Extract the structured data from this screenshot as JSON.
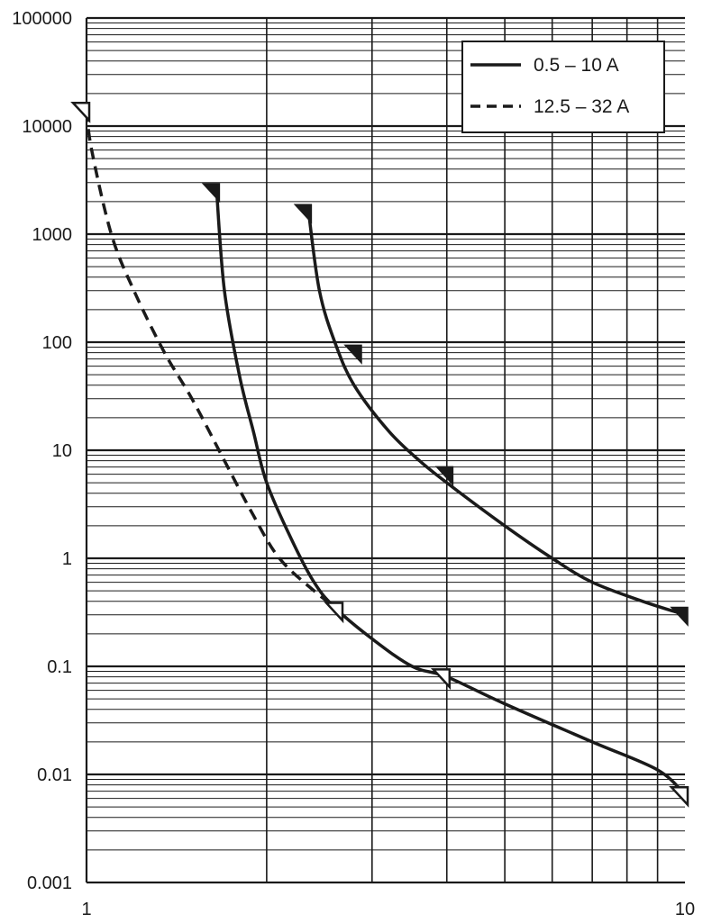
{
  "chart_data": {
    "type": "line",
    "title": "",
    "xlabel": "",
    "ylabel": "",
    "x_scale": "log",
    "y_scale": "log",
    "xlim": [
      1,
      10
    ],
    "ylim": [
      0.001,
      100000
    ],
    "grid": true,
    "legend_position": "top-right",
    "x_ticks": [
      "1",
      "10"
    ],
    "y_ticks": [
      "100000",
      "10000",
      "1000",
      "100",
      "10",
      "1",
      "0.1",
      "0.01",
      "0.001"
    ],
    "legend": [
      {
        "label": "0.5 – 10 A",
        "style": "solid"
      },
      {
        "label": "12.5 – 32 A",
        "style": "dashed"
      }
    ],
    "series": [
      {
        "style": "solid",
        "points": [
          [
            1.65,
            2500
          ],
          [
            1.7,
            300
          ],
          [
            1.8,
            50
          ],
          [
            1.9,
            15
          ],
          [
            2.0,
            5
          ],
          [
            2.2,
            1.5
          ],
          [
            2.4,
            0.6
          ],
          [
            2.6,
            0.35
          ],
          [
            3.0,
            0.18
          ],
          [
            3.5,
            0.1
          ],
          [
            4.0,
            0.08
          ],
          [
            5.0,
            0.045
          ],
          [
            7.0,
            0.02
          ],
          [
            9.0,
            0.011
          ],
          [
            10.0,
            0.0065
          ]
        ]
      },
      {
        "style": "solid",
        "points": [
          [
            2.35,
            1600
          ],
          [
            2.45,
            300
          ],
          [
            2.6,
            100
          ],
          [
            2.8,
            40
          ],
          [
            3.2,
            15
          ],
          [
            3.6,
            8
          ],
          [
            4.0,
            5
          ],
          [
            5.0,
            2
          ],
          [
            6.0,
            1
          ],
          [
            7.0,
            0.6
          ],
          [
            8.5,
            0.4
          ],
          [
            10.0,
            0.3
          ]
        ]
      },
      {
        "style": "dashed",
        "points": [
          [
            1.0,
            14000
          ],
          [
            1.02,
            6000
          ],
          [
            1.1,
            1000
          ],
          [
            1.2,
            300
          ],
          [
            1.35,
            80
          ],
          [
            1.5,
            30
          ],
          [
            1.7,
            8
          ],
          [
            1.9,
            2.5
          ],
          [
            2.1,
            1
          ],
          [
            2.4,
            0.5
          ],
          [
            2.65,
            0.33
          ]
        ]
      }
    ],
    "markers": [
      {
        "x": 1.65,
        "y": 2500,
        "style": "filled"
      },
      {
        "x": 2.35,
        "y": 1600,
        "style": "filled"
      },
      {
        "x": 2.85,
        "y": 80,
        "style": "filled"
      },
      {
        "x": 4.05,
        "y": 6,
        "style": "filled"
      },
      {
        "x": 10.0,
        "y": 0.3,
        "style": "filled"
      },
      {
        "x": 1.0,
        "y": 14000,
        "style": "open"
      },
      {
        "x": 2.65,
        "y": 0.33,
        "style": "open"
      },
      {
        "x": 4.0,
        "y": 0.08,
        "style": "open"
      },
      {
        "x": 10.0,
        "y": 0.0065,
        "style": "open"
      }
    ]
  }
}
